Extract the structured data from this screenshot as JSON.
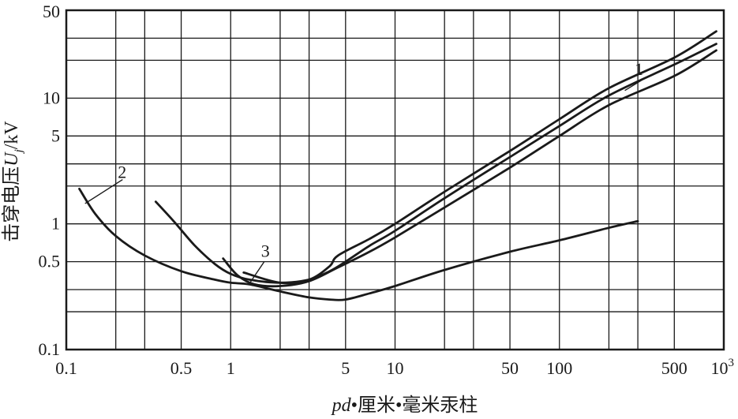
{
  "chart_data": {
    "type": "line",
    "xscale": "log",
    "yscale": "log",
    "xlim": [
      0.1,
      1000
    ],
    "ylim": [
      0.1,
      50
    ],
    "grid": true,
    "xlabel": {
      "italic": "pd",
      "rest": "•厘米•毫米汞柱"
    },
    "ylabel": {
      "prefix": "击穿电压",
      "italic": "U",
      "sub": "j",
      "suffix": "/kV"
    },
    "x_tick_labels": [
      "0.1",
      "0.5",
      "1",
      "5",
      "10",
      "50",
      "100",
      "500"
    ],
    "x_tick_last": {
      "base": "10",
      "exp": "3"
    },
    "y_tick_labels": [
      "0.1",
      "0.5",
      "1",
      "5",
      "10",
      "50"
    ],
    "series": [
      {
        "name": "1",
        "points": [
          [
            0.9,
            0.53
          ],
          [
            1.1,
            0.39
          ],
          [
            1.4,
            0.33
          ],
          [
            2,
            0.32
          ],
          [
            3,
            0.35
          ],
          [
            4.5,
            0.45
          ],
          [
            7,
            0.6
          ],
          [
            10,
            0.78
          ],
          [
            20,
            1.35
          ],
          [
            50,
            2.8
          ],
          [
            100,
            5.0
          ],
          [
            200,
            8.8
          ],
          [
            500,
            15
          ],
          [
            900,
            24
          ]
        ]
      },
      {
        "name": "1",
        "points": [
          [
            1.2,
            0.41
          ],
          [
            2,
            0.34
          ],
          [
            3,
            0.36
          ],
          [
            4,
            0.46
          ],
          [
            4.5,
            0.56
          ],
          [
            7,
            0.76
          ],
          [
            10,
            1.0
          ],
          [
            20,
            1.8
          ],
          [
            50,
            3.8
          ],
          [
            100,
            6.8
          ],
          [
            200,
            12
          ],
          [
            500,
            21
          ],
          [
            900,
            34
          ]
        ]
      },
      {
        "name": "2",
        "points": [
          [
            0.12,
            1.9
          ],
          [
            0.15,
            1.2
          ],
          [
            0.2,
            0.8
          ],
          [
            0.3,
            0.56
          ],
          [
            0.5,
            0.42
          ],
          [
            0.8,
            0.36
          ],
          [
            1,
            0.34
          ],
          [
            1.3,
            0.33
          ],
          [
            2,
            0.29
          ],
          [
            3,
            0.26
          ],
          [
            4,
            0.25
          ],
          [
            5,
            0.25
          ],
          [
            7,
            0.28
          ],
          [
            10,
            0.32
          ],
          [
            20,
            0.43
          ],
          [
            50,
            0.6
          ],
          [
            100,
            0.74
          ],
          [
            200,
            0.93
          ],
          [
            300,
            1.05
          ]
        ]
      },
      {
        "name": "3",
        "points": [
          [
            0.35,
            1.5
          ],
          [
            0.45,
            1.05
          ],
          [
            0.6,
            0.68
          ],
          [
            0.8,
            0.48
          ],
          [
            1,
            0.4
          ],
          [
            1.3,
            0.36
          ],
          [
            2,
            0.34
          ],
          [
            3,
            0.36
          ],
          [
            4,
            0.42
          ],
          [
            5,
            0.5
          ],
          [
            7,
            0.67
          ],
          [
            10,
            0.88
          ],
          [
            20,
            1.6
          ],
          [
            50,
            3.4
          ],
          [
            100,
            6.0
          ],
          [
            200,
            10.5
          ],
          [
            500,
            18.5
          ],
          [
            900,
            27
          ]
        ]
      }
    ],
    "curve_labels": [
      "1",
      "2",
      "3"
    ]
  }
}
